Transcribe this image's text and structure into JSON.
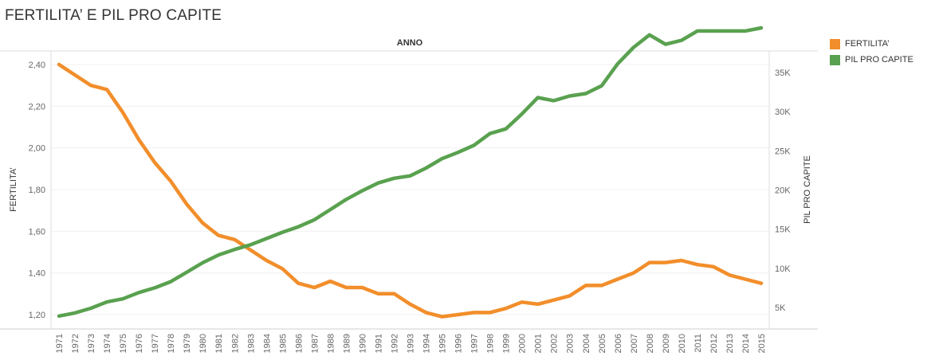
{
  "title": "FERTILITA’ E PIL PRO CAPITE",
  "legend": [
    {
      "label": "FERTILITA’",
      "color": "#f28e2b"
    },
    {
      "label": "PIL PRO CAPITE",
      "color": "#59a14f"
    }
  ],
  "chart_data": {
    "type": "line",
    "top_axis_label": "ANNO",
    "y_left_label": "FERTILITA’",
    "y_right_label": "PIL PRO CAPITE",
    "x": [
      "1971",
      "1972",
      "1973",
      "1974",
      "1975",
      "1976",
      "1977",
      "1978",
      "1979",
      "1980",
      "1981",
      "1982",
      "1983",
      "1984",
      "1985",
      "1986",
      "1987",
      "1988",
      "1989",
      "1990",
      "1991",
      "1992",
      "1993",
      "1994",
      "1995",
      "1996",
      "1997",
      "1998",
      "1999",
      "2000",
      "2001",
      "2002",
      "2003",
      "2004",
      "2005",
      "2006",
      "2007",
      "2008",
      "2009",
      "2010",
      "2011",
      "2012",
      "2013",
      "2014",
      "2015"
    ],
    "y_left_ticks": [
      "2,40",
      "2,20",
      "2,00",
      "1,80",
      "1,60",
      "1,40",
      "1,20"
    ],
    "y_left_tick_values": [
      2.4,
      2.2,
      2.0,
      1.8,
      1.6,
      1.4,
      1.2
    ],
    "y_right_ticks": [
      "35K",
      "30K",
      "25K",
      "20K",
      "15K",
      "10K",
      "5K"
    ],
    "y_right_tick_values": [
      35000,
      30000,
      25000,
      20000,
      15000,
      10000,
      5000
    ],
    "grid": true,
    "legend_position": "top-right",
    "series": [
      {
        "name": "FERTILITA’",
        "axis": "left",
        "color": "#f28e2b",
        "values": [
          2.4,
          2.35,
          2.3,
          2.28,
          2.17,
          2.04,
          1.93,
          1.84,
          1.73,
          1.64,
          1.58,
          1.56,
          1.51,
          1.46,
          1.42,
          1.35,
          1.33,
          1.36,
          1.33,
          1.33,
          1.3,
          1.3,
          1.25,
          1.21,
          1.19,
          1.2,
          1.21,
          1.21,
          1.23,
          1.26,
          1.25,
          1.27,
          1.29,
          1.34,
          1.34,
          1.37,
          1.4,
          1.45,
          1.45,
          1.46,
          1.44,
          1.43,
          1.39,
          1.37,
          1.35
        ]
      },
      {
        "name": "PIL PRO CAPITE",
        "axis": "right",
        "color": "#59a14f",
        "values": [
          3900,
          4300,
          4900,
          5700,
          6100,
          6900,
          7500,
          8300,
          9500,
          10700,
          11700,
          12400,
          13000,
          13800,
          14600,
          15300,
          16200,
          17500,
          18800,
          19900,
          20900,
          21500,
          21800,
          22800,
          24000,
          24800,
          25700,
          27200,
          27800,
          29700,
          31800,
          31400,
          32000,
          32300,
          33300,
          36100,
          38200,
          39800,
          38600,
          39100,
          40300,
          40300,
          40300,
          40300,
          40700
        ]
      }
    ]
  }
}
